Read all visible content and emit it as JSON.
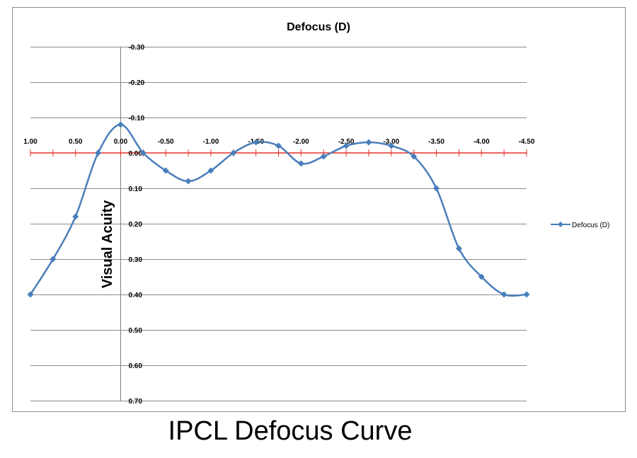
{
  "chart_data": {
    "type": "line",
    "title": "Defocus (D)",
    "xlabel": "",
    "ylabel": "Visual Acuity",
    "x_tick_labels": [
      "1.00",
      "0.50",
      "0.00",
      "-0.50",
      "-1.00",
      "-1.50",
      "-2.00",
      "-2.50",
      "-3.00",
      "-3.50",
      "-4.00",
      "-4.50"
    ],
    "y_tick_labels": [
      "-0.30",
      "-0.20",
      "-0.10",
      "0.00",
      "0.10",
      "0.20",
      "0.30",
      "0.40",
      "0.50",
      "0.60",
      "0.70"
    ],
    "xlim": [
      1.0,
      -4.5
    ],
    "ylim": [
      -0.3,
      0.7
    ],
    "y_axis_inverted": true,
    "grid": true,
    "smooth": true,
    "legend_position": "right",
    "series": [
      {
        "name": "Defocus (D)",
        "color": "#4a7ebb",
        "marker": "diamond",
        "x": [
          1.0,
          0.75,
          0.5,
          0.25,
          0.0,
          -0.25,
          -0.5,
          -0.75,
          -1.0,
          -1.25,
          -1.5,
          -1.75,
          -2.0,
          -2.25,
          -2.5,
          -2.75,
          -3.0,
          -3.25,
          -3.5,
          -3.75,
          -4.0,
          -4.25,
          -4.5
        ],
        "y": [
          0.4,
          0.3,
          0.18,
          0.0,
          -0.08,
          0.0,
          0.05,
          0.08,
          0.05,
          0.0,
          -0.03,
          -0.02,
          0.03,
          0.01,
          -0.02,
          -0.03,
          -0.02,
          0.01,
          0.1,
          0.27,
          0.35,
          0.4,
          0.4
        ]
      }
    ],
    "zero_line_color": "#e8302a",
    "grid_color": "#8c8c8c",
    "axis_color": "#808080"
  },
  "caption": "IPCL Defocus Curve"
}
